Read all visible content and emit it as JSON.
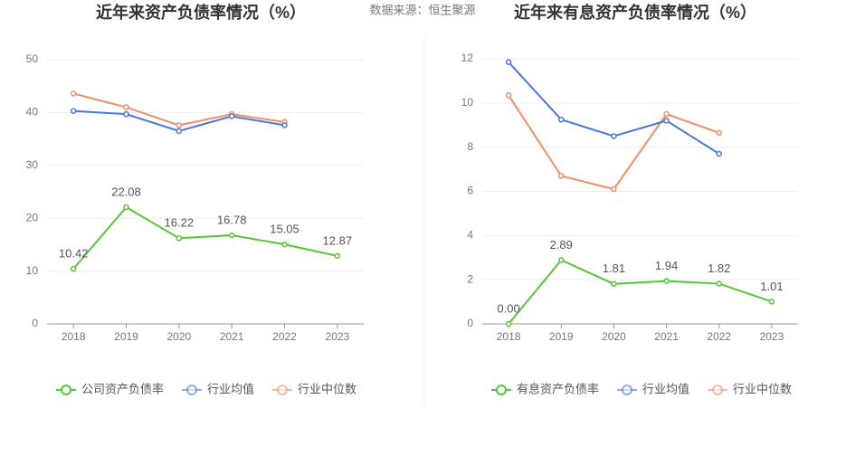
{
  "source": "数据来源：恒生聚源",
  "chart_data": [
    {
      "type": "line",
      "title": "近年来资产负债率情况（%）",
      "categories": [
        "2018",
        "2019",
        "2020",
        "2021",
        "2022",
        "2023"
      ],
      "series": [
        {
          "name": "公司资产负债率",
          "color": "#5ac437",
          "values": [
            10.42,
            22.08,
            16.22,
            16.78,
            15.05,
            12.87
          ],
          "labels": true
        },
        {
          "name": "行业均值",
          "color": "#4a78d8",
          "values": [
            40.3,
            39.7,
            36.5,
            39.3,
            37.6,
            null
          ]
        },
        {
          "name": "行业中位数",
          "color": "#f08e68",
          "values": [
            43.6,
            41.0,
            37.6,
            39.7,
            38.2,
            null
          ]
        }
      ],
      "ylim": [
        0,
        50
      ],
      "yticks": [
        0,
        10,
        20,
        30,
        40,
        50
      ],
      "grid": true
    },
    {
      "type": "line",
      "title": "近年来有息资产负债率情况（%）",
      "categories": [
        "2018",
        "2019",
        "2020",
        "2021",
        "2022",
        "2023"
      ],
      "series": [
        {
          "name": "有息资产负债率",
          "color": "#5ac437",
          "values": [
            0,
            2.89,
            1.81,
            1.94,
            1.82,
            1.01
          ],
          "value_labels": [
            "0.00",
            "2.89",
            "1.81",
            "1.94",
            "1.82",
            "1.01"
          ],
          "labels": true
        },
        {
          "name": "行业均值",
          "color": "#4a78d8",
          "values": [
            11.85,
            9.25,
            8.5,
            9.2,
            7.7,
            null
          ]
        },
        {
          "name": "行业中位数",
          "color": "#f08e68",
          "values": [
            10.35,
            6.7,
            6.1,
            9.5,
            8.65,
            null
          ]
        }
      ],
      "ylim": [
        0,
        12
      ],
      "yticks": [
        0,
        2,
        4,
        6,
        8,
        10,
        12
      ],
      "grid": true
    }
  ]
}
